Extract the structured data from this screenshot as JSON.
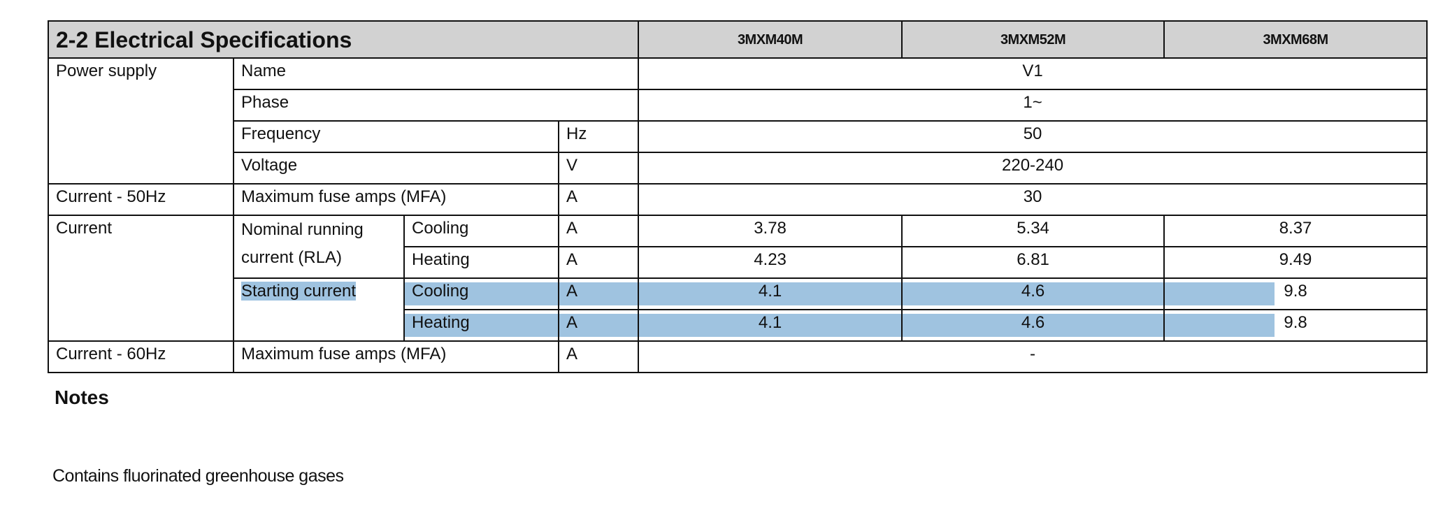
{
  "header": {
    "title": "2-2   Electrical Specifications",
    "models": [
      "3MXM40M",
      "3MXM52M",
      "3MXM68M"
    ]
  },
  "table": {
    "rows": [
      [
        "Power supply",
        "Name",
        "V1"
      ],
      [
        "Phase",
        "1~"
      ],
      [
        "Frequency",
        "Hz",
        "50"
      ],
      [
        "Voltage",
        "V",
        "220-240"
      ],
      [
        "Current - 50Hz",
        "Maximum fuse amps (MFA)",
        "A",
        "30"
      ],
      [
        "Current",
        "Nominal running current (RLA)",
        "Cooling",
        "A",
        "3.78",
        "5.34",
        "8.37"
      ],
      [
        "Heating",
        "A",
        "4.23",
        "6.81",
        "9.49"
      ],
      [
        "Starting current",
        "Cooling",
        "A",
        "4.1",
        "4.6",
        "9.8"
      ],
      [
        "Heating",
        "A",
        "4.1",
        "4.6",
        "9.8"
      ],
      [
        "Current - 60Hz",
        "Maximum fuse amps (MFA)",
        "A",
        "-"
      ]
    ]
  },
  "notes": {
    "heading": "Notes",
    "text": "Contains fluorinated greenhouse gases"
  }
}
